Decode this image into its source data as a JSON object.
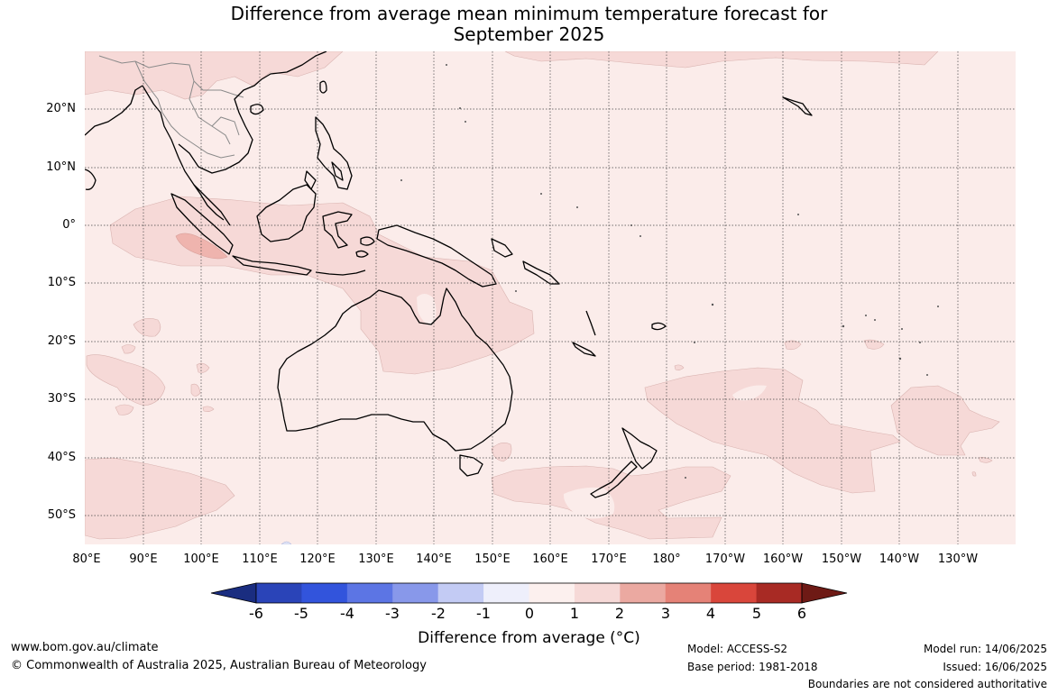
{
  "title_line1": "Difference from average mean minimum temperature forecast for",
  "title_line2": "September 2025",
  "lat_labels": [
    "20°N",
    "10°N",
    "0°",
    "10°S",
    "20°S",
    "30°S",
    "40°S",
    "50°S"
  ],
  "lon_labels": [
    "80°E",
    "90°E",
    "100°E",
    "110°E",
    "120°E",
    "130°E",
    "140°E",
    "150°E",
    "160°E",
    "170°E",
    "180°",
    "170°W",
    "160°W",
    "150°W",
    "140°W",
    "130°W"
  ],
  "colorbar": {
    "ticks": [
      "-6",
      "-5",
      "-4",
      "-3",
      "-2",
      "-1",
      "0",
      "1",
      "2",
      "3",
      "4",
      "5",
      "6"
    ],
    "colors": [
      "#1a2d80",
      "#2a44b8",
      "#3254dc",
      "#5c75e4",
      "#8898ea",
      "#c3cbf4",
      "#eeeffb",
      "#fcf0ee",
      "#f6d9d7",
      "#eba9a1",
      "#e58277",
      "#d9463b",
      "#a82a24",
      "#6e1a15"
    ],
    "title": "Difference from average (°C)"
  },
  "footer": {
    "website": "www.bom.gov.au/climate",
    "copyright": "© Commonwealth of Australia 2025, Australian Bureau of Meteorology",
    "model": "Model: ACCESS-S2",
    "base_period": "Base period: 1981-2018",
    "model_run": "Model run: 14/06/2025",
    "issued": "Issued: 16/06/2025",
    "disclaimer": "Boundaries are not considered authoritative"
  },
  "map_colors": {
    "ocean_0_1": "#fbecea",
    "anom_1_2": "#f6d9d7",
    "anom_2_3": "#efb4ae",
    "coast": "#000000",
    "border": "#808080"
  }
}
